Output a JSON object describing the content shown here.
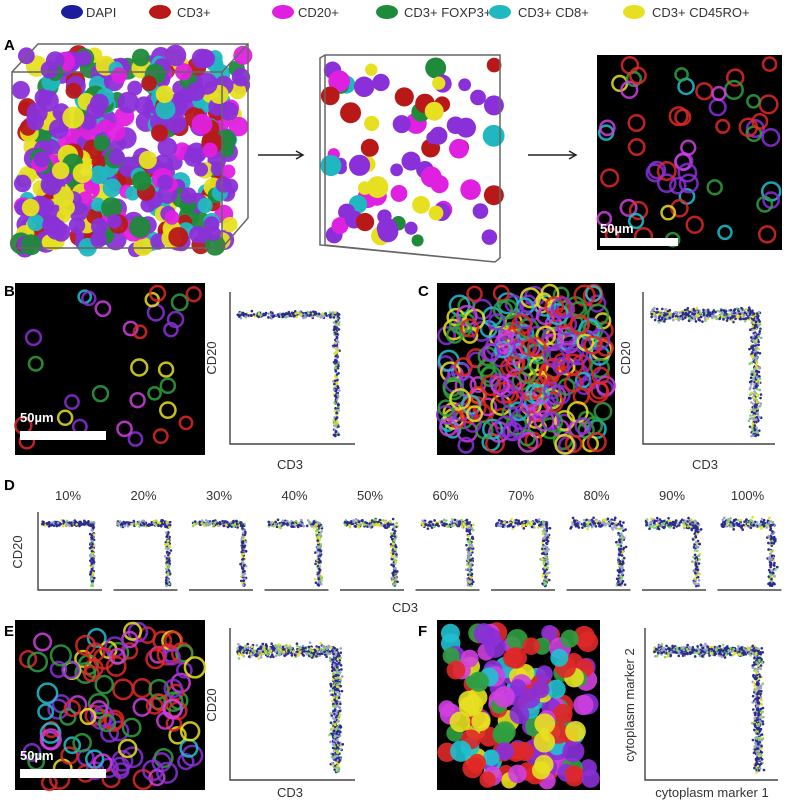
{
  "legend": [
    {
      "label": "DAPI",
      "color": "#1c1c9c"
    },
    {
      "label": "CD3+",
      "color": "#b81818"
    },
    {
      "label": "CD20+",
      "color": "#e020e0"
    },
    {
      "label": "CD3+ FOXP3+",
      "color": "#1e8a3a"
    },
    {
      "label": "CD3+ CD8+",
      "color": "#20b8c0"
    },
    {
      "label": "CD3+ CD45RO+",
      "color": "#e6e020"
    }
  ],
  "panels": {
    "A": {
      "label": "A",
      "scale_bar": "50µm"
    },
    "B": {
      "label": "B",
      "scale_bar": "50µm",
      "x_axis": "CD3",
      "y_axis": "CD20"
    },
    "C": {
      "label": "C",
      "x_axis": "CD3",
      "y_axis": "CD20"
    },
    "D": {
      "label": "D",
      "percentages": [
        "10%",
        "20%",
        "30%",
        "40%",
        "50%",
        "60%",
        "70%",
        "80%",
        "90%",
        "100%"
      ],
      "x_axis": "CD3",
      "y_axis": "CD20"
    },
    "E": {
      "label": "E",
      "scale_bar": "50µm",
      "x_axis": "CD3",
      "y_axis": "CD20"
    },
    "F": {
      "label": "F",
      "x_axis": "cytoplasm marker 1",
      "y_axis": "cytoplasm marker 2"
    }
  }
}
